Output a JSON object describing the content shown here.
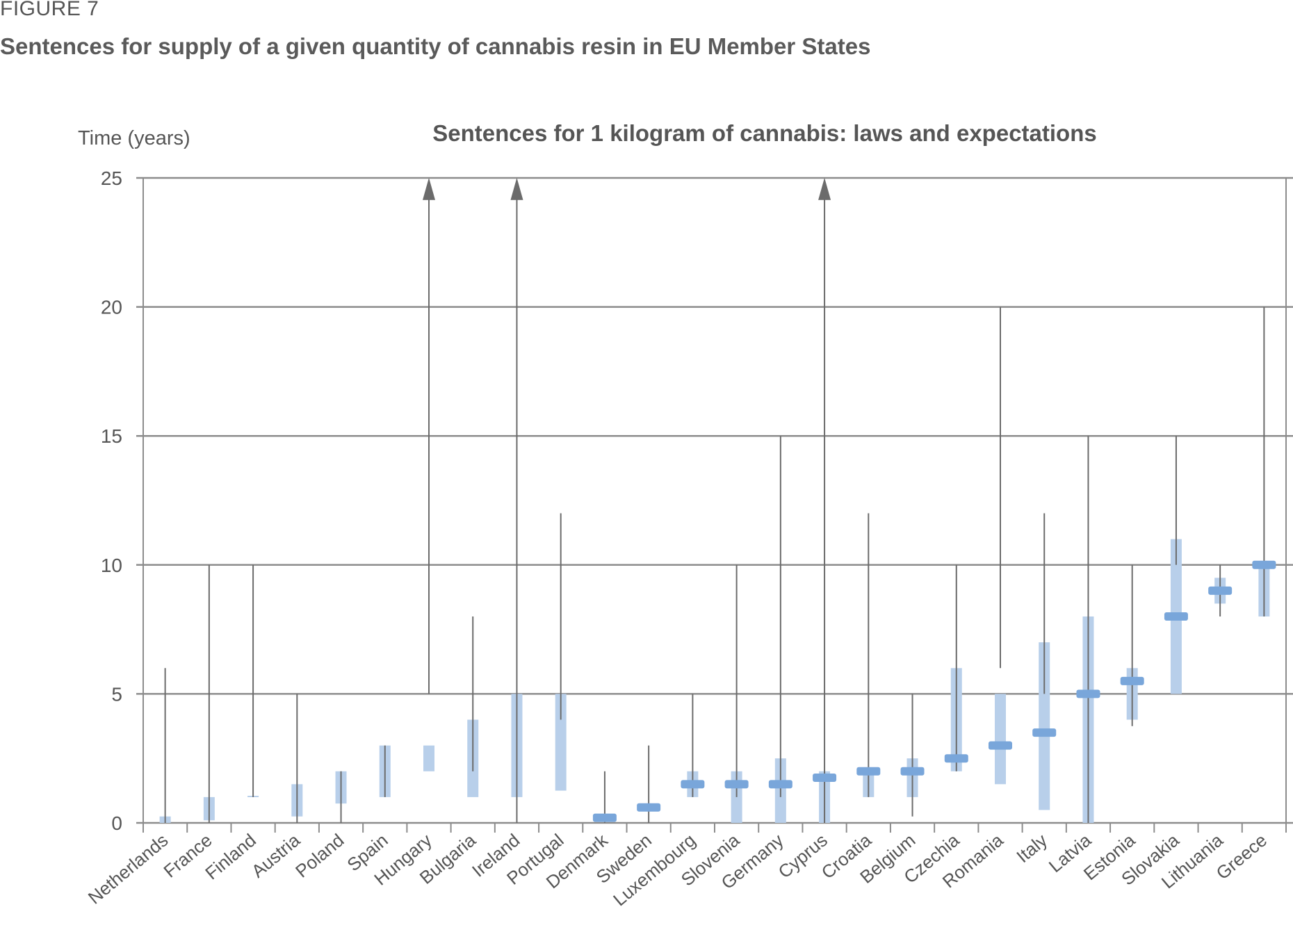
{
  "figure_label": "FIGURE 7",
  "figure_title": "Sentences for supply of a given quantity of cannabis resin in EU Member States",
  "chart_data": {
    "type": "range",
    "title": "Sentences for 1 kilogram of cannabis: laws and expectations",
    "ylabel": "Time (years)",
    "xlabel": "",
    "ylim": [
      0,
      25
    ],
    "yticks": [
      0,
      5,
      10,
      15,
      20,
      25
    ],
    "grid": true,
    "colors": {
      "law_line": "#6b6b6b",
      "expected_range": "#b8cfea",
      "expected_point": "#79a6da",
      "grid": "#8c8c8c"
    },
    "series_description": [
      "law range (line)",
      "expected range (light bar)",
      "expected sentence (marker)"
    ],
    "countries": [
      {
        "name": "Netherlands",
        "law": [
          0,
          6
        ],
        "range": [
          0,
          0.25
        ],
        "expected": null,
        "arrow": false
      },
      {
        "name": "France",
        "law": [
          0,
          10
        ],
        "range": [
          0.1,
          1
        ],
        "expected": null,
        "arrow": false
      },
      {
        "name": "Finland",
        "law": [
          1,
          10
        ],
        "range": [
          1,
          1.05
        ],
        "expected": null,
        "arrow": false
      },
      {
        "name": "Austria",
        "law": [
          0,
          5
        ],
        "range": [
          0.25,
          1.5
        ],
        "expected": null,
        "arrow": false
      },
      {
        "name": "Poland",
        "law": [
          0,
          2
        ],
        "range": [
          0.75,
          2
        ],
        "expected": null,
        "arrow": false
      },
      {
        "name": "Spain",
        "law": [
          1,
          3
        ],
        "range": [
          1,
          3
        ],
        "expected": null,
        "arrow": false
      },
      {
        "name": "Hungary",
        "law": [
          5,
          25
        ],
        "range": [
          2,
          3
        ],
        "expected": null,
        "arrow": true
      },
      {
        "name": "Bulgaria",
        "law": [
          2,
          8
        ],
        "range": [
          1,
          4
        ],
        "expected": null,
        "arrow": false
      },
      {
        "name": "Ireland",
        "law": [
          0,
          25
        ],
        "range": [
          1,
          5
        ],
        "expected": null,
        "arrow": true
      },
      {
        "name": "Portugal",
        "law": [
          4,
          12
        ],
        "range": [
          1.25,
          5
        ],
        "expected": null,
        "arrow": false
      },
      {
        "name": "Denmark",
        "law": [
          0,
          2
        ],
        "range": null,
        "expected": 0.2,
        "arrow": false
      },
      {
        "name": "Sweden",
        "law": [
          0,
          3
        ],
        "range": null,
        "expected": 0.6,
        "arrow": false
      },
      {
        "name": "Luxembourg",
        "law": [
          1,
          5
        ],
        "range": [
          1,
          2
        ],
        "expected": 1.5,
        "arrow": false
      },
      {
        "name": "Slovenia",
        "law": [
          1,
          10
        ],
        "range": [
          0,
          2
        ],
        "expected": 1.5,
        "arrow": false
      },
      {
        "name": "Germany",
        "law": [
          1,
          15
        ],
        "range": [
          0,
          2.5
        ],
        "expected": 1.5,
        "arrow": false
      },
      {
        "name": "Cyprus",
        "law": [
          0,
          25
        ],
        "range": [
          0,
          2
        ],
        "expected": 1.75,
        "arrow": true
      },
      {
        "name": "Croatia",
        "law": [
          1,
          12
        ],
        "range": [
          1,
          2
        ],
        "expected": 2,
        "arrow": false
      },
      {
        "name": "Belgium",
        "law": [
          0.25,
          5
        ],
        "range": [
          1,
          2.5
        ],
        "expected": 2,
        "arrow": false
      },
      {
        "name": "Czechia",
        "law": [
          2,
          10
        ],
        "range": [
          2,
          6
        ],
        "expected": 2.5,
        "arrow": false
      },
      {
        "name": "Romania",
        "law": [
          6,
          20
        ],
        "range": [
          1.5,
          5
        ],
        "expected": 3,
        "arrow": false
      },
      {
        "name": "Italy",
        "law": [
          5,
          12
        ],
        "range": [
          0.5,
          7
        ],
        "expected": 3.5,
        "arrow": false
      },
      {
        "name": "Latvia",
        "law": [
          0,
          15
        ],
        "range": [
          0,
          8
        ],
        "expected": 5,
        "arrow": false
      },
      {
        "name": "Estonia",
        "law": [
          3.75,
          10
        ],
        "range": [
          4,
          6
        ],
        "expected": 5.5,
        "arrow": false
      },
      {
        "name": "Slovakia",
        "law": [
          10,
          15
        ],
        "range": [
          5,
          11
        ],
        "expected": 8,
        "arrow": false
      },
      {
        "name": "Lithuania",
        "law": [
          8,
          10
        ],
        "range": [
          8.5,
          9.5
        ],
        "expected": 9,
        "arrow": false
      },
      {
        "name": "Greece",
        "law": [
          8,
          20
        ],
        "range": [
          8,
          10
        ],
        "expected": 10,
        "arrow": false
      }
    ]
  }
}
